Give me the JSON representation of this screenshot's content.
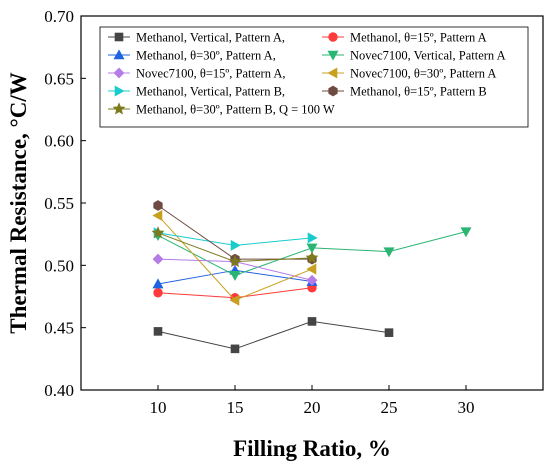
{
  "chart_data": {
    "type": "line",
    "xlabel": "Filling Ratio, %",
    "ylabel": "Thermal Resistance, °C/W",
    "xlim": [
      5,
      35
    ],
    "ylim": [
      0.4,
      0.7
    ],
    "x_ticks": [
      10,
      15,
      20,
      25,
      30
    ],
    "y_ticks": [
      0.4,
      0.45,
      0.5,
      0.55,
      0.6,
      0.65,
      0.7
    ],
    "x_tick_labels": [
      "10",
      "15",
      "20",
      "25",
      "30"
    ],
    "y_tick_labels": [
      "0.40",
      "0.45",
      "0.50",
      "0.55",
      "0.60",
      "0.65",
      "0.70"
    ],
    "grid": false,
    "legend_position": "top, inside plot",
    "series": [
      {
        "name": "Methanol, Vertical, Pattern A,",
        "color": "#454545",
        "marker": "square",
        "x": [
          10,
          15,
          20,
          25
        ],
        "y": [
          0.447,
          0.433,
          0.455,
          0.446
        ]
      },
      {
        "name": "Methanol, θ=15º, Pattern A",
        "color": "#ff3a3a",
        "marker": "circle",
        "x": [
          10,
          15,
          20
        ],
        "y": [
          0.478,
          0.474,
          0.482
        ]
      },
      {
        "name": "Methanol, θ=30º, Pattern A,",
        "color": "#1f63e0",
        "marker": "triangle-up",
        "x": [
          10,
          15,
          20
        ],
        "y": [
          0.485,
          0.496,
          0.487
        ]
      },
      {
        "name": "Novec7100, Vertical, Pattern A",
        "color": "#2ab572",
        "marker": "triangle-down",
        "x": [
          10,
          15,
          20,
          25,
          30
        ],
        "y": [
          0.524,
          0.492,
          0.514,
          0.511,
          0.527
        ]
      },
      {
        "name": "Novec7100, θ=15º, Pattern A,",
        "color": "#b57ce8",
        "marker": "diamond",
        "x": [
          10,
          15,
          20
        ],
        "y": [
          0.505,
          0.503,
          0.488
        ]
      },
      {
        "name": "Novec7100, θ=30º, Pattern A",
        "color": "#c8a020",
        "marker": "triangle-left",
        "x": [
          10,
          15,
          20
        ],
        "y": [
          0.54,
          0.472,
          0.497
        ]
      },
      {
        "name": "Methanol, Vertical, Pattern B,",
        "color": "#19cccc",
        "marker": "triangle-right",
        "x": [
          10,
          15,
          20
        ],
        "y": [
          0.526,
          0.516,
          0.522
        ]
      },
      {
        "name": "Methanol, θ=15º, Pattern B",
        "color": "#6e4a40",
        "marker": "hexagon",
        "x": [
          10,
          15,
          20
        ],
        "y": [
          0.548,
          0.505,
          0.505
        ]
      },
      {
        "name": "Methanol, θ=30º, Pattern B, Q = 100 W",
        "color": "#7b7b1e",
        "marker": "star",
        "x": [
          10,
          15,
          20
        ],
        "y": [
          0.526,
          0.503,
          0.506
        ]
      }
    ]
  }
}
